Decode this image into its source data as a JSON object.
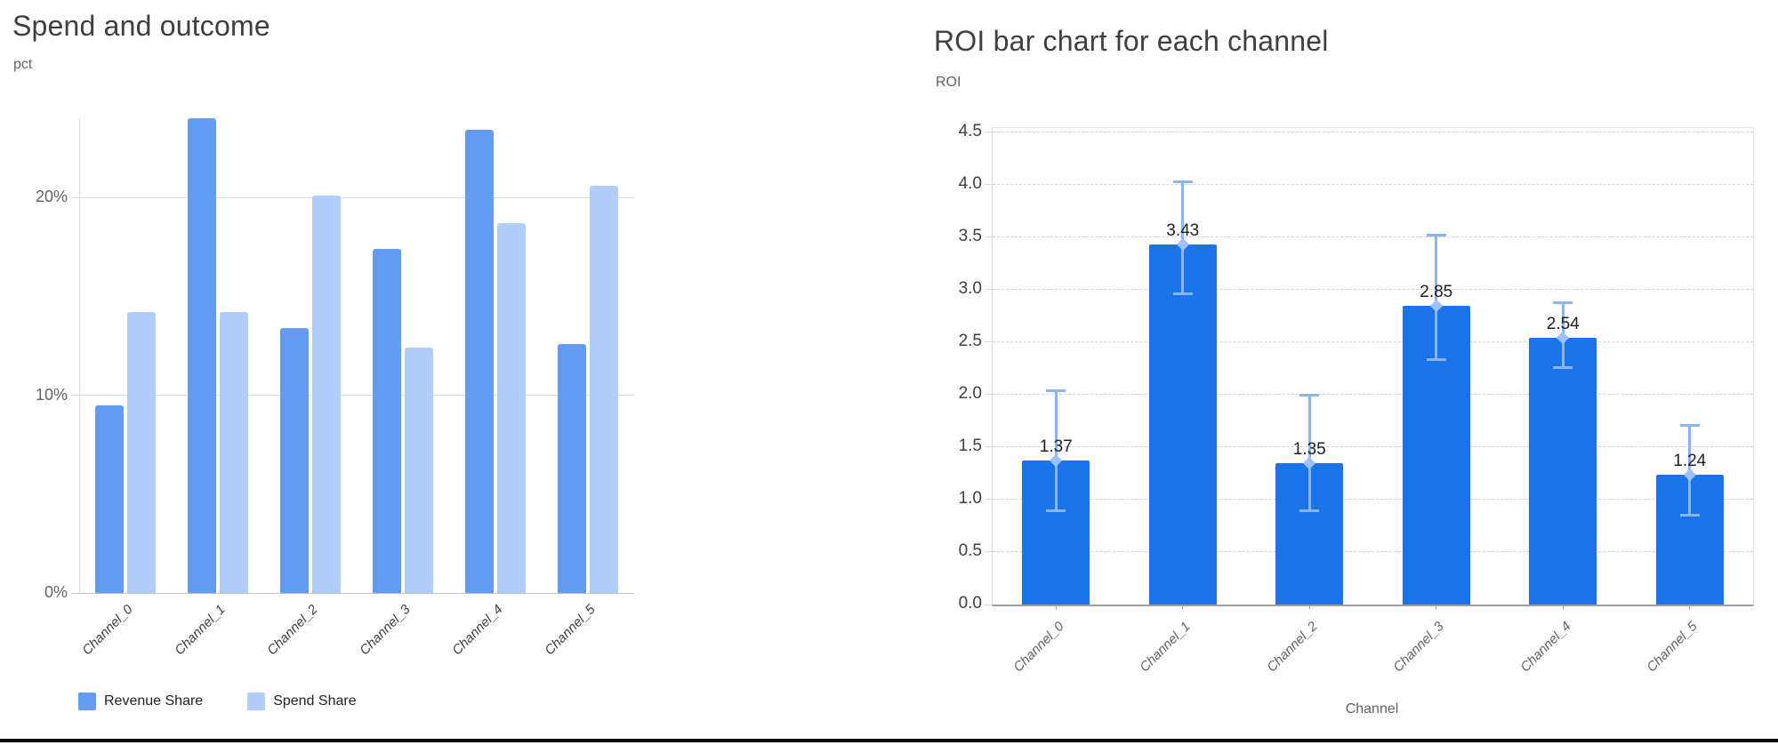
{
  "chart_data": [
    {
      "type": "bar",
      "title": "Spend and outcome",
      "ylabel": "pct",
      "xlabel": "",
      "categories": [
        "Channel_0",
        "Channel_1",
        "Channel_2",
        "Channel_3",
        "Channel_4",
        "Channel_5"
      ],
      "series": [
        {
          "name": "Revenue Share",
          "color": "#649bf5",
          "values": [
            9.5,
            24,
            13.4,
            17.4,
            23.4,
            12.6
          ]
        },
        {
          "name": "Spend Share",
          "color": "#b1cdfa",
          "values": [
            14.2,
            14.2,
            20.1,
            12.4,
            18.7,
            20.6
          ]
        }
      ],
      "y_ticks": [
        {
          "value": 0,
          "label": "0%"
        },
        {
          "value": 10,
          "label": "10%"
        },
        {
          "value": 20,
          "label": "20%"
        }
      ],
      "ylim": [
        0,
        24
      ],
      "grid": "solid-horizontal",
      "legend_position": "bottom"
    },
    {
      "type": "bar",
      "title": "ROI bar chart for each channel",
      "ylabel": "ROI",
      "xlabel": "Channel",
      "categories": [
        "Channel_0",
        "Channel_1",
        "Channel_2",
        "Channel_3",
        "Channel_4",
        "Channel_5"
      ],
      "series": [
        {
          "name": "ROI",
          "color": "#1a73e8",
          "error_color": "#8ab4f8",
          "values": [
            1.37,
            3.43,
            1.35,
            2.85,
            2.54,
            1.24
          ],
          "data_labels": [
            "1.37",
            "3.43",
            "1.35",
            "2.85",
            "2.54",
            "1.24"
          ],
          "error_low": [
            0.89,
            2.96,
            0.89,
            2.33,
            2.25,
            0.85
          ],
          "error_high": [
            2.04,
            4.03,
            2.0,
            3.52,
            2.88,
            1.71
          ]
        }
      ],
      "y_ticks": [
        {
          "value": 0,
          "label": "0.0"
        },
        {
          "value": 0.5,
          "label": "0.5"
        },
        {
          "value": 1,
          "label": "1.0"
        },
        {
          "value": 1.5,
          "label": "1.5"
        },
        {
          "value": 2,
          "label": "2.0"
        },
        {
          "value": 2.5,
          "label": "2.5"
        },
        {
          "value": 3,
          "label": "3.0"
        },
        {
          "value": 3.5,
          "label": "3.5"
        },
        {
          "value": 4,
          "label": "4.0"
        },
        {
          "value": 4.5,
          "label": "4.5"
        }
      ],
      "ylim": [
        0,
        4.54
      ],
      "grid": "dashed-horizontal",
      "legend_position": "none"
    }
  ]
}
